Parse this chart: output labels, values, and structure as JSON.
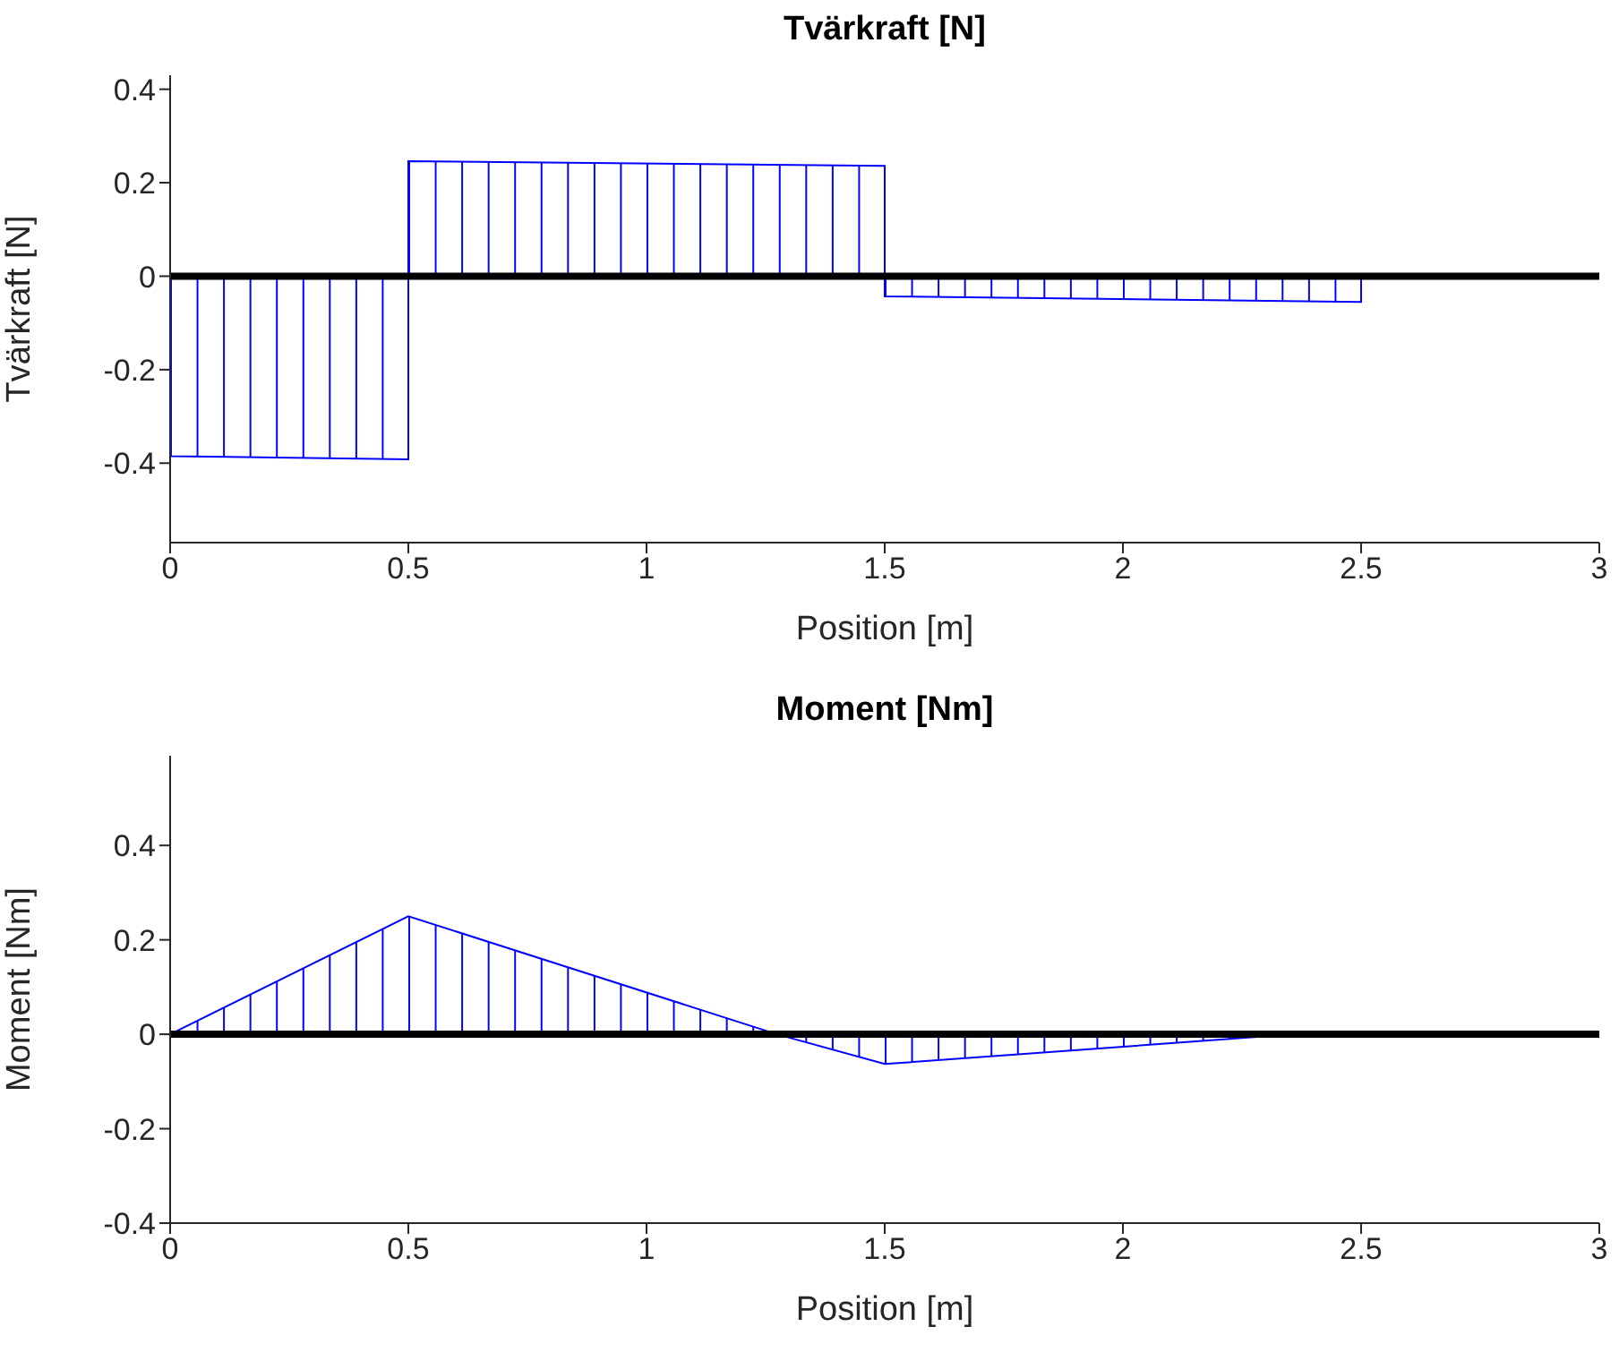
{
  "chart_data": [
    {
      "type": "area",
      "title": "Tvärkraft [N]",
      "xlabel": "Position [m]",
      "ylabel": "Tvärkraft [N]",
      "xlim": [
        0,
        3
      ],
      "xticks": [
        0,
        0.5,
        1,
        1.5,
        2,
        2.5,
        3
      ],
      "ylim": [
        -0.57,
        0.43
      ],
      "yticks": [
        -0.4,
        -0.2,
        0,
        0.2,
        0.4
      ],
      "grid": false,
      "series": [
        {
          "color": "#0000ff",
          "x": [
            0,
            0,
            0.5,
            0.5,
            1.5,
            1.5,
            2.5,
            2.5
          ],
          "values": [
            0,
            -0.385,
            -0.392,
            0.246,
            0.236,
            -0.043,
            -0.055,
            0
          ]
        }
      ],
      "ref_lines": [
        {
          "axis": "y",
          "value": 0,
          "color": "#000000"
        }
      ]
    },
    {
      "type": "area",
      "title": "Moment [Nm]",
      "xlabel": "Position [m]",
      "ylabel": "Moment [Nm]",
      "xlim": [
        0,
        3
      ],
      "xticks": [
        0,
        0.5,
        1,
        1.5,
        2,
        2.5,
        3
      ],
      "ylim": [
        -0.4,
        0.59
      ],
      "yticks": [
        -0.4,
        -0.2,
        0,
        0.2,
        0.4
      ],
      "grid": false,
      "series": [
        {
          "color": "#0000ff",
          "x": [
            0,
            0.5,
            1.274,
            1.5,
            2.36,
            2.5
          ],
          "values": [
            0,
            0.25,
            0,
            -0.063,
            0,
            0
          ]
        }
      ],
      "ref_lines": [
        {
          "axis": "y",
          "value": 0,
          "color": "#000000"
        }
      ]
    }
  ]
}
